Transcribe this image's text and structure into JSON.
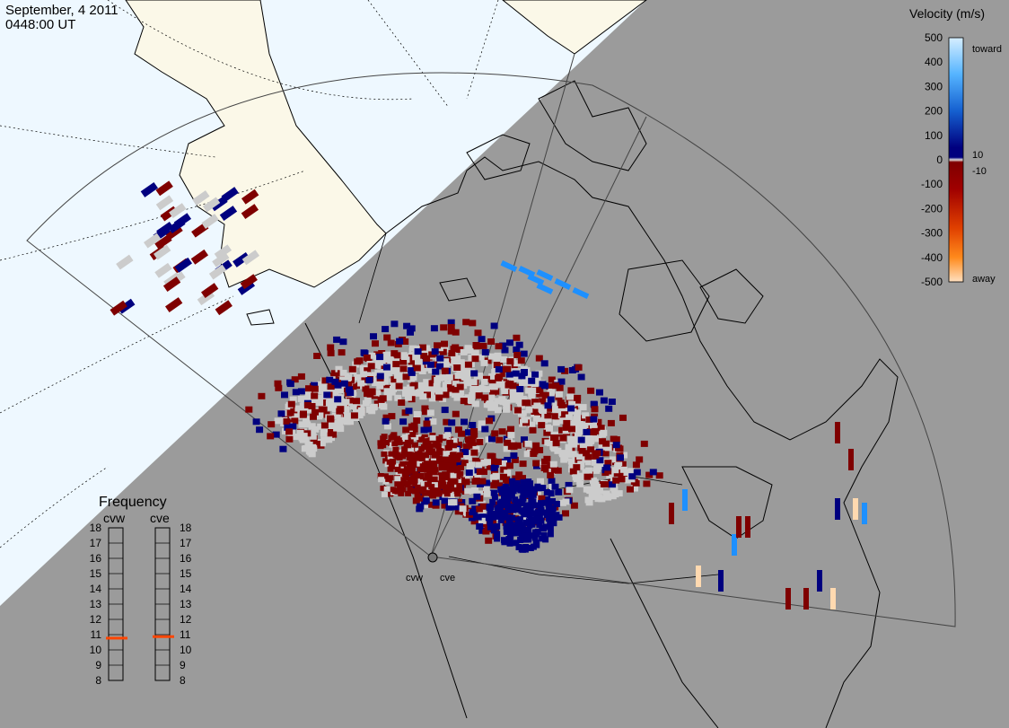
{
  "header": {
    "date": "September, 4 2011",
    "time": "0448:00 UT"
  },
  "colorbar": {
    "title": "Velocity (m/s)",
    "ticks": [
      "500",
      "400",
      "300",
      "200",
      "100",
      "0",
      "-100",
      "-200",
      "-300",
      "-400",
      "-500"
    ],
    "labels": [
      "toward",
      "10",
      "-10",
      "away"
    ],
    "colors": {
      "toward_light": "#cfe9ff",
      "toward_mid": "#1e90ff",
      "toward_dark": "#00007f",
      "away_dark": "#7f0000",
      "away_mid": "#ff6600",
      "away_light": "#ffd9b0"
    }
  },
  "frequency": {
    "title": "Frequency",
    "radars": [
      "cvw",
      "cve"
    ],
    "scale": [
      "18",
      "17",
      "16",
      "15",
      "14",
      "13",
      "12",
      "11",
      "10",
      "9",
      "8"
    ],
    "cvw_mhz": 10.8,
    "cve_mhz": 10.9,
    "marker_color": "#ff4500"
  },
  "map": {
    "radar_labels": [
      "cvw",
      "cve"
    ],
    "sunlit_color": "#eef8ff",
    "land_sunlit": "#fbf8e8",
    "night_color": "#9b9b9b",
    "ground_scatter_color": "#cccccc"
  }
}
